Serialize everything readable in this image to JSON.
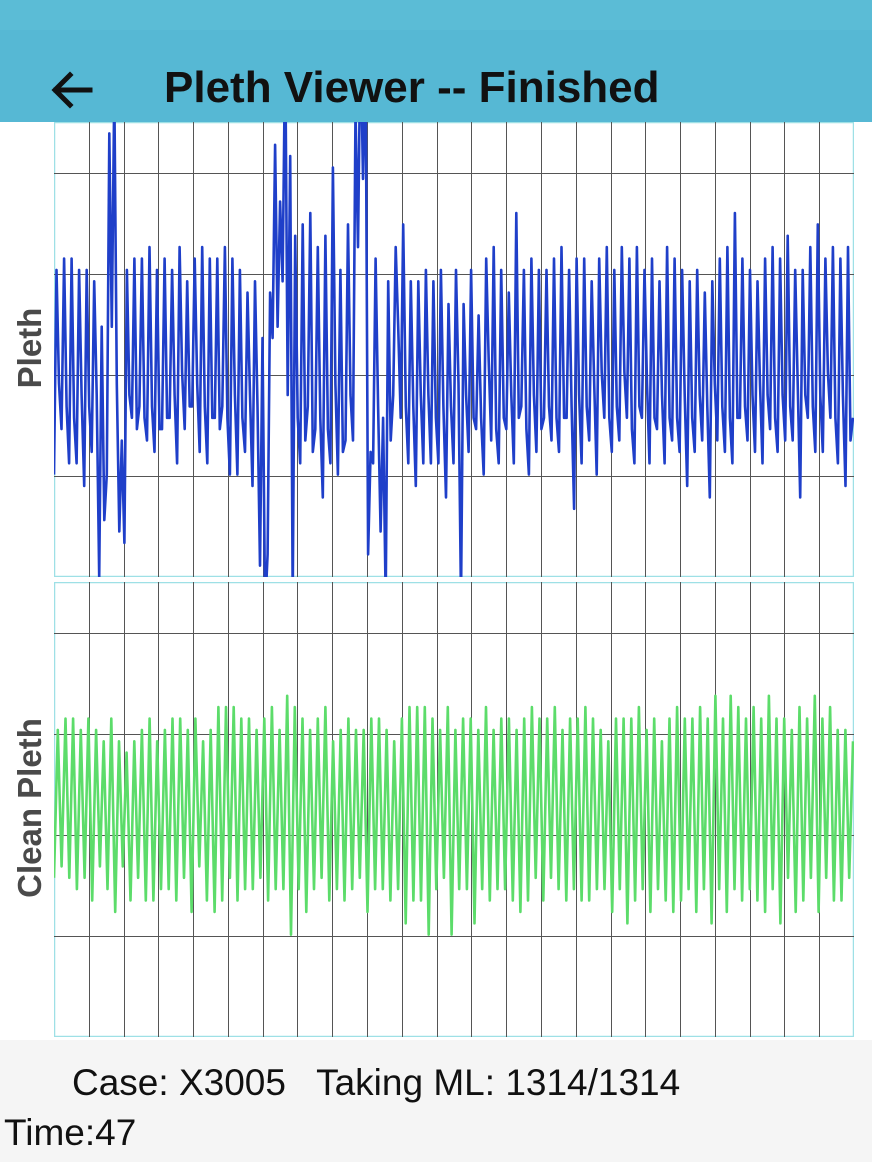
{
  "appbar": {
    "title": "Pleth Viewer -- Finished",
    "back_icon": "arrow-left-icon",
    "color": "#56b8d4"
  },
  "footer": {
    "case_label": "Case:",
    "case_id": "X3005",
    "taking_label": "Taking ML:",
    "taking_value": "1314/1314",
    "time_label": "Time:",
    "time_value": "47"
  },
  "chart_data": [
    {
      "type": "line",
      "title": "",
      "ylabel": "Pleth",
      "xlabel": "",
      "grid": true,
      "x_divisions": 23,
      "y_divisions": 4.5,
      "ylim": [
        -2.0,
        2.0
      ],
      "series": [
        {
          "color": "#1f3fc9",
          "values": [
            -1.1,
            0.7,
            -0.3,
            -0.7,
            0.8,
            -0.5,
            -1.0,
            0.8,
            -0.6,
            -1.0,
            0.7,
            -0.4,
            -1.2,
            0.7,
            -0.5,
            -0.9,
            0.6,
            -0.4,
            -2.0,
            0.2,
            -1.5,
            -1.1,
            1.9,
            0.2,
            2.3,
            -0.3,
            -1.6,
            -0.8,
            -1.7,
            0.7,
            -0.4,
            -0.6,
            0.8,
            -0.7,
            -0.5,
            0.8,
            -0.6,
            -0.8,
            0.9,
            -0.5,
            -0.9,
            0.7,
            -0.7,
            -0.7,
            0.8,
            -0.6,
            -0.6,
            0.7,
            -0.4,
            -1.0,
            0.9,
            -0.2,
            -0.7,
            0.6,
            -0.5,
            -0.5,
            0.8,
            -0.3,
            -0.9,
            0.9,
            -0.5,
            -1.0,
            0.8,
            -0.6,
            -0.6,
            0.8,
            -0.7,
            -0.5,
            0.9,
            -0.6,
            -1.1,
            0.8,
            -0.4,
            -1.1,
            0.7,
            -0.6,
            -0.9,
            0.5,
            -0.4,
            -1.2,
            0.6,
            -0.5,
            -1.9,
            0.1,
            -2.3,
            -1.8,
            0.5,
            0.1,
            1.8,
            0.2,
            1.3,
            0.6,
            2.7,
            -0.4,
            1.7,
            -2.2,
            1.0,
            -0.6,
            -1.0,
            1.1,
            -0.8,
            -0.5,
            1.2,
            -0.9,
            -0.7,
            0.9,
            -0.6,
            -1.3,
            1.0,
            -0.7,
            -1.0,
            1.6,
            -0.3,
            -1.1,
            0.7,
            -0.9,
            -0.8,
            1.1,
            -0.4,
            -0.8,
            2.1,
            0.9,
            2.8,
            1.5,
            2.6,
            -1.8,
            -0.9,
            -1.0,
            0.8,
            -0.5,
            -1.6,
            -0.6,
            -2.2,
            0.6,
            -0.8,
            -0.4,
            0.9,
            0.2,
            -0.6,
            1.1,
            -0.5,
            -1.0,
            0.6,
            -0.5,
            -1.2,
            0.6,
            -0.4,
            -1.0,
            0.7,
            -0.4,
            -1.0,
            0.6,
            -0.6,
            -1.0,
            0.7,
            -0.5,
            -1.3,
            0.4,
            -0.5,
            -1.0,
            0.7,
            -0.3,
            -2.2,
            0.4,
            -0.4,
            -0.9,
            0.7,
            -0.6,
            -0.7,
            0.3,
            -0.6,
            -1.1,
            0.8,
            -0.1,
            -0.8,
            0.9,
            -0.7,
            -1.0,
            0.7,
            -0.6,
            -0.7,
            0.5,
            -0.4,
            -1.0,
            1.2,
            -0.6,
            -0.5,
            0.7,
            -0.7,
            -1.1,
            0.8,
            -0.4,
            -0.9,
            0.7,
            -0.7,
            -0.6,
            0.7,
            -0.5,
            -0.8,
            0.8,
            -0.6,
            -0.9,
            0.9,
            -0.6,
            -0.6,
            0.7,
            -0.5,
            -1.4,
            0.8,
            -0.4,
            -1.0,
            0.8,
            -0.5,
            -0.8,
            0.6,
            -0.3,
            -1.1,
            0.8,
            -0.2,
            -0.6,
            0.9,
            -0.6,
            -0.9,
            0.7,
            -0.5,
            -0.8,
            0.9,
            -0.2,
            -0.6,
            0.8,
            -0.7,
            -1.0,
            0.9,
            -0.5,
            -0.6,
            0.7,
            -0.3,
            -1.0,
            0.8,
            -0.6,
            -0.7,
            0.6,
            -0.4,
            -1.0,
            0.9,
            -0.6,
            -0.8,
            0.8,
            -0.6,
            -0.9,
            0.7,
            -0.4,
            -1.2,
            0.6,
            -0.6,
            -0.9,
            0.7,
            -0.4,
            -0.8,
            0.5,
            -0.5,
            -1.3,
            0.6,
            -0.3,
            -0.8,
            0.8,
            -0.5,
            -0.9,
            0.9,
            -0.6,
            -1.0,
            1.2,
            -0.6,
            -0.6,
            0.8,
            -0.5,
            -0.8,
            0.7,
            -0.4,
            -0.9,
            0.6,
            -0.3,
            -1.0,
            0.8,
            -0.4,
            -0.7,
            0.9,
            -0.6,
            -0.9,
            0.8,
            -0.4,
            -0.8,
            1.0,
            -0.5,
            -0.8,
            0.7,
            -0.3,
            -1.3,
            0.7,
            -0.4,
            -0.6,
            0.9,
            -0.5,
            -0.9,
            1.1,
            -0.4,
            -0.9,
            0.8,
            -0.2,
            -0.6,
            0.9,
            -0.6,
            -1.0,
            0.8,
            -0.4,
            -1.2,
            0.9,
            -0.8,
            -0.6
          ]
        }
      ]
    },
    {
      "type": "line",
      "title": "",
      "ylabel": "Clean Pleth",
      "xlabel": "",
      "grid": true,
      "x_divisions": 23,
      "y_divisions": 4.5,
      "ylim": [
        -2.0,
        2.0
      ],
      "series": [
        {
          "color": "#5cdc6a",
          "values": [
            -0.6,
            0.7,
            -0.5,
            0.8,
            -0.6,
            0.8,
            -0.7,
            0.7,
            -0.6,
            0.8,
            -0.8,
            0.7,
            -0.5,
            0.6,
            -0.7,
            0.8,
            -0.9,
            0.6,
            -0.5,
            0.5,
            -0.8,
            0.6,
            -0.6,
            0.7,
            -0.8,
            0.8,
            -0.8,
            0.6,
            -0.7,
            0.7,
            -0.7,
            0.8,
            -0.8,
            0.8,
            -0.6,
            0.7,
            -0.9,
            0.8,
            -0.5,
            0.6,
            -0.8,
            0.7,
            -0.9,
            0.9,
            -0.8,
            0.9,
            -0.6,
            0.9,
            -0.8,
            0.8,
            -0.7,
            0.8,
            -0.7,
            0.7,
            -0.6,
            0.8,
            -0.8,
            0.9,
            -0.7,
            0.7,
            -0.7,
            1.0,
            -1.1,
            0.9,
            -0.7,
            0.8,
            -0.9,
            0.7,
            -0.7,
            0.8,
            -0.6,
            0.9,
            -0.8,
            0.6,
            -0.7,
            0.7,
            -0.8,
            0.8,
            -0.7,
            0.7,
            -0.6,
            0.7,
            -0.9,
            0.8,
            -0.7,
            0.8,
            -0.7,
            0.7,
            -0.8,
            0.6,
            -0.7,
            0.8,
            -1.0,
            0.9,
            -0.8,
            0.9,
            -0.8,
            0.9,
            -1.1,
            0.8,
            -0.7,
            0.7,
            -0.6,
            0.9,
            -1.1,
            0.7,
            -0.7,
            0.8,
            -0.7,
            0.8,
            -1.0,
            0.7,
            -0.7,
            0.9,
            -0.8,
            0.7,
            -0.7,
            0.8,
            -0.7,
            0.8,
            -0.8,
            0.7,
            -0.9,
            0.8,
            -0.8,
            0.9,
            -0.6,
            0.8,
            -0.8,
            0.8,
            -0.6,
            0.9,
            -0.7,
            0.7,
            -0.8,
            0.8,
            -0.7,
            0.8,
            -0.8,
            0.9,
            -0.8,
            0.8,
            -0.7,
            0.7,
            -0.7,
            0.6,
            -0.9,
            0.8,
            -0.7,
            0.8,
            -1.0,
            0.8,
            -0.8,
            0.9,
            -0.7,
            0.7,
            -0.9,
            0.8,
            -0.7,
            0.6,
            -0.8,
            0.8,
            -0.9,
            0.9,
            -0.8,
            0.8,
            -0.7,
            0.8,
            -0.9,
            0.9,
            -0.7,
            0.8,
            -1.0,
            1.0,
            -0.7,
            0.8,
            -0.9,
            1.0,
            -0.7,
            0.9,
            -0.8,
            0.8,
            -0.7,
            0.9,
            -0.8,
            0.8,
            -0.9,
            1.0,
            -0.7,
            0.8,
            -1.0,
            0.8,
            -0.6,
            0.7,
            -0.9,
            0.9,
            -0.8,
            0.8,
            -0.6,
            1.0,
            -0.9,
            0.8,
            -0.6,
            0.9,
            -0.8,
            0.7,
            -0.8,
            0.7,
            -0.6,
            0.6
          ]
        }
      ]
    }
  ]
}
